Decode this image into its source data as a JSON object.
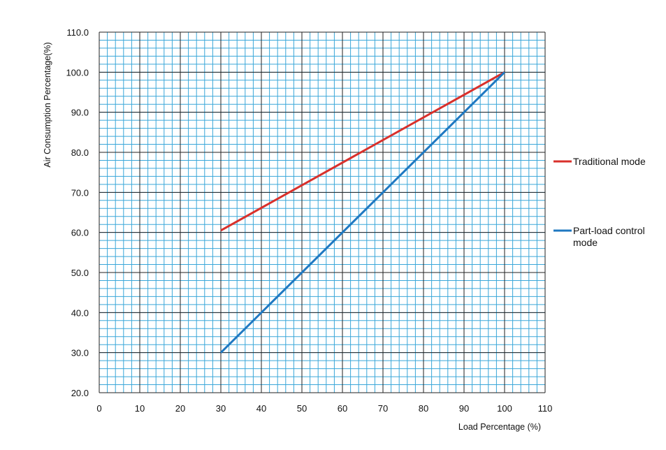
{
  "chart_data": {
    "type": "line",
    "xlabel": "Load Percentage (%)",
    "ylabel": "Air Consumption Percentage(%)",
    "xlim": [
      0,
      110
    ],
    "ylim": [
      20,
      110
    ],
    "x_ticks": [
      "0",
      "10",
      "20",
      "30",
      "40",
      "50",
      "60",
      "70",
      "80",
      "90",
      "100",
      "110"
    ],
    "y_ticks": [
      "20.0",
      "30.0",
      "40.0",
      "50.0",
      "60.0",
      "70.0",
      "80.0",
      "90.0",
      "100.0",
      "110.0"
    ],
    "grid": true,
    "legend_position": "right",
    "series": [
      {
        "name": "Traditional mode",
        "color": "#d9302b",
        "x": [
          30,
          100
        ],
        "y": [
          60.5,
          100
        ]
      },
      {
        "name": "Part-load control mode",
        "color": "#1f78c1",
        "x": [
          30,
          100
        ],
        "y": [
          30,
          100
        ]
      }
    ]
  },
  "colors": {
    "minor_grid": "#3aa7d9",
    "major_grid": "#222222"
  }
}
